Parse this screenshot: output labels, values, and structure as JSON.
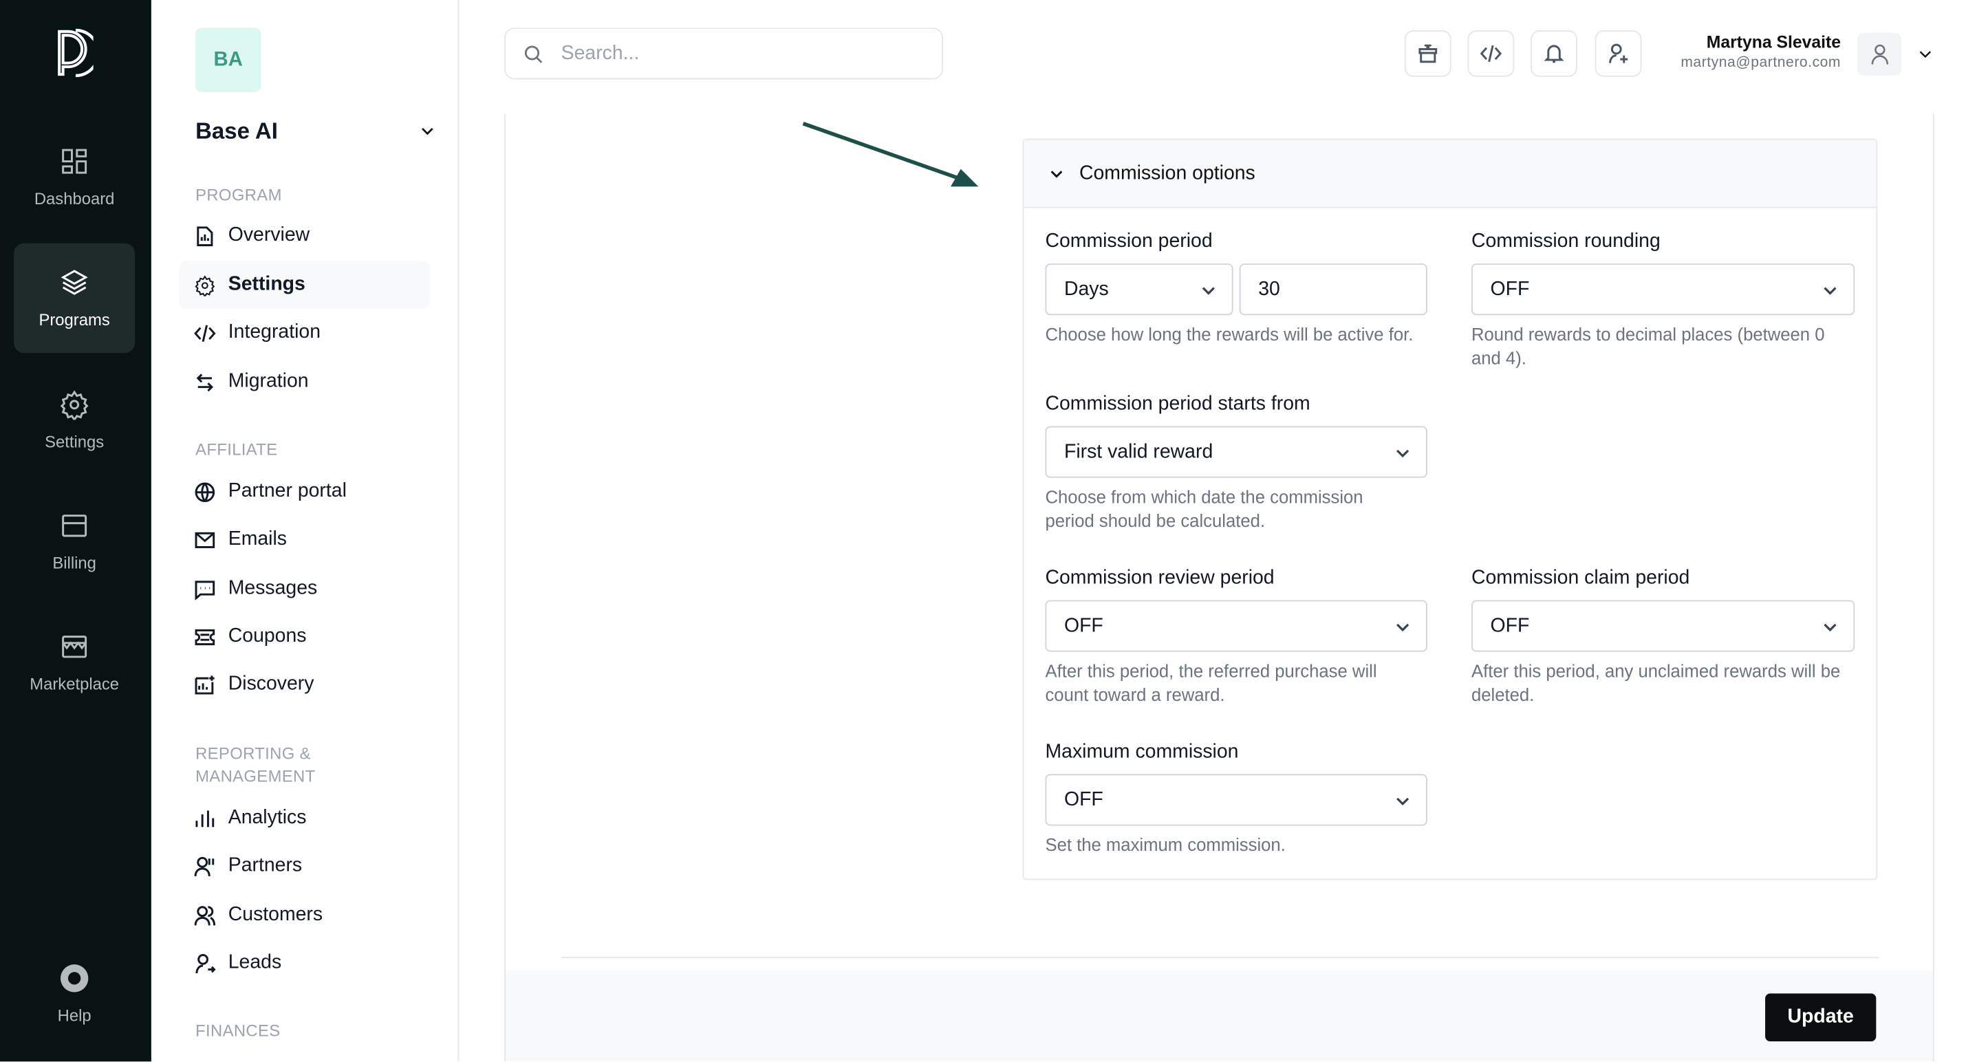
{
  "rail": {
    "items": [
      {
        "label": "Dashboard",
        "icon": "dashboard-icon"
      },
      {
        "label": "Programs",
        "icon": "layers-icon"
      },
      {
        "label": "Settings",
        "icon": "gear-icon"
      },
      {
        "label": "Billing",
        "icon": "billing-icon"
      },
      {
        "label": "Marketplace",
        "icon": "store-icon"
      },
      {
        "label": "Help",
        "icon": "lifebuoy-icon"
      }
    ]
  },
  "program": {
    "initials": "BA",
    "name": "Base AI"
  },
  "sidebar": {
    "program_heading": "PROGRAM",
    "program_items": [
      {
        "label": "Overview"
      },
      {
        "label": "Settings"
      },
      {
        "label": "Integration"
      },
      {
        "label": "Migration"
      }
    ],
    "affiliate_heading": "AFFILIATE",
    "affiliate_items": [
      {
        "label": "Partner portal"
      },
      {
        "label": "Emails"
      },
      {
        "label": "Messages"
      },
      {
        "label": "Coupons"
      },
      {
        "label": "Discovery"
      }
    ],
    "reporting_heading_1": "REPORTING &",
    "reporting_heading_2": "MANAGEMENT",
    "reporting_items": [
      {
        "label": "Analytics"
      },
      {
        "label": "Partners"
      },
      {
        "label": "Customers"
      },
      {
        "label": "Leads"
      }
    ],
    "finances_heading": "FINANCES"
  },
  "header": {
    "search_placeholder": "Search...",
    "user_name": "Martyna Slevaite",
    "user_email": "martyna@partnero.com"
  },
  "panel": {
    "title": "Commission options",
    "period_label": "Commission period",
    "period_unit": "Days",
    "period_value": "30",
    "period_help": "Choose how long the rewards will be active for.",
    "rounding_label": "Commission rounding",
    "rounding_value": "OFF",
    "rounding_help": "Round rewards to decimal places (between 0 and 4).",
    "starts_label": "Commission period starts from",
    "starts_value": "First valid reward",
    "starts_help": "Choose from which date the commission period should be calculated.",
    "review_label": "Commission review period",
    "review_value": "OFF",
    "review_help": "After this period, the referred purchase will count toward a reward.",
    "claim_label": "Commission claim period",
    "claim_value": "OFF",
    "claim_help": "After this period, any unclaimed rewards will be deleted.",
    "max_label": "Maximum commission",
    "max_value": "OFF",
    "max_help": "Set the maximum commission."
  },
  "footer": {
    "update_label": "Update"
  },
  "colors": {
    "rail_bg": "#0a1314",
    "accent_bg": "#ddf7f1",
    "accent_text": "#3a9a86",
    "arrow": "#1f4f4a"
  }
}
